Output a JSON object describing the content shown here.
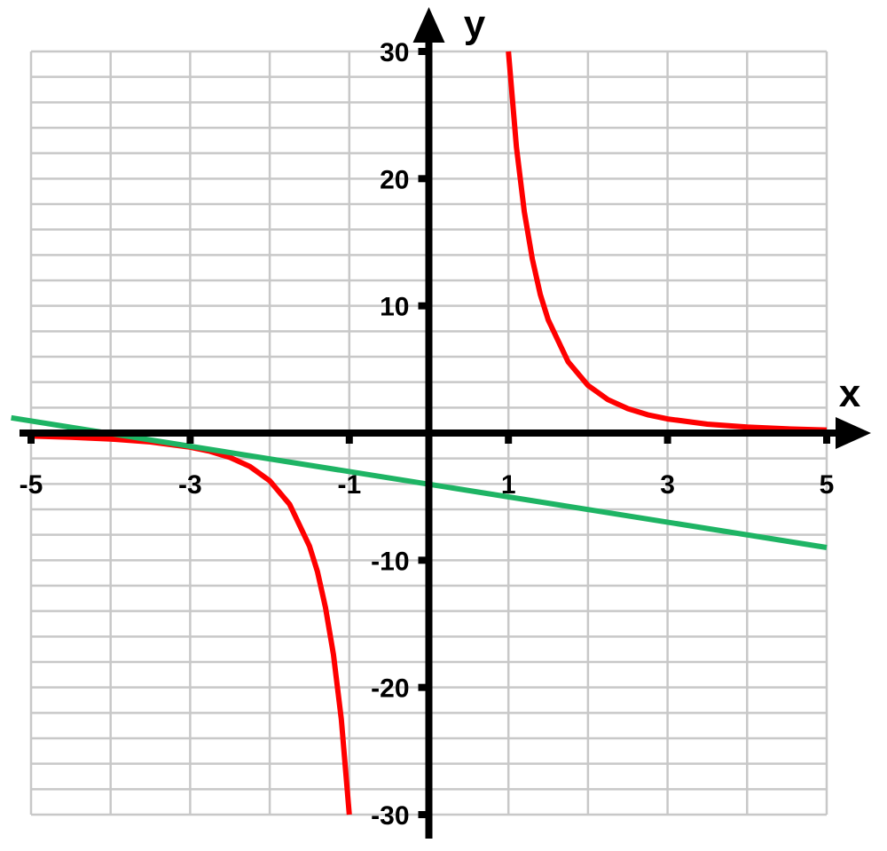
{
  "chart_data": {
    "type": "line",
    "title": "",
    "xlabel": "x",
    "ylabel": "y",
    "xlim": [
      -5,
      5
    ],
    "ylim": [
      -30,
      30
    ],
    "grid": true,
    "x_major_step": 1,
    "y_minor_step": 2,
    "x_ticks": [
      -5,
      -3,
      -1,
      1,
      3,
      5
    ],
    "x_tick_labels": [
      "-5",
      "-3",
      "-1",
      "1",
      "3",
      "5"
    ],
    "y_ticks": [
      -30,
      -20,
      -10,
      10,
      20,
      30
    ],
    "y_tick_labels": [
      "-30",
      "-20",
      "-10",
      "10",
      "20",
      "30"
    ],
    "series": [
      {
        "color": "#ff0000",
        "points": [
          [
            -5,
            -0.24
          ],
          [
            -4.5,
            -0.33
          ],
          [
            -4,
            -0.47
          ],
          [
            -3.5,
            -0.7
          ],
          [
            -3,
            -1.11
          ],
          [
            -2.75,
            -1.44
          ],
          [
            -2.5,
            -1.92
          ],
          [
            -2.25,
            -2.63
          ],
          [
            -2,
            -3.75
          ],
          [
            -1.75,
            -5.6
          ],
          [
            -1.5,
            -8.89
          ],
          [
            -1.4,
            -10.9
          ],
          [
            -1.3,
            -13.7
          ],
          [
            -1.2,
            -17.4
          ],
          [
            -1.1,
            -22.5
          ],
          [
            -1,
            -30
          ]
        ]
      },
      {
        "color": "#ff0000",
        "points": [
          [
            1,
            30
          ],
          [
            1.1,
            22.5
          ],
          [
            1.2,
            17.4
          ],
          [
            1.3,
            13.7
          ],
          [
            1.4,
            10.9
          ],
          [
            1.5,
            8.89
          ],
          [
            1.75,
            5.6
          ],
          [
            2,
            3.75
          ],
          [
            2.25,
            2.63
          ],
          [
            2.5,
            1.92
          ],
          [
            2.75,
            1.44
          ],
          [
            3,
            1.11
          ],
          [
            3.5,
            0.7
          ],
          [
            4,
            0.47
          ],
          [
            4.5,
            0.33
          ],
          [
            5,
            0.24
          ]
        ]
      },
      {
        "color": "#1eb464",
        "points": [
          [
            -5.25,
            1.2
          ],
          [
            5,
            -9
          ]
        ]
      }
    ]
  }
}
